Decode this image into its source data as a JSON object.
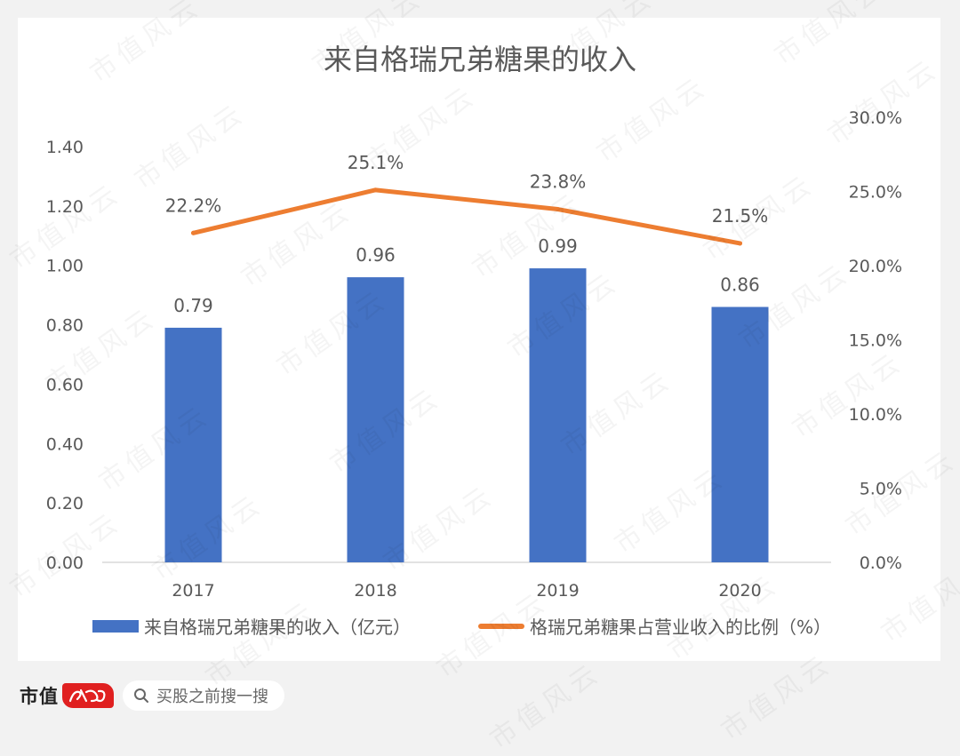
{
  "chart_data": {
    "type": "bar",
    "title": "来自格瑞兄弟糖果的收入",
    "categories": [
      "2017",
      "2018",
      "2019",
      "2020"
    ],
    "series": [
      {
        "name": "来自格瑞兄弟糖果的收入（亿元）",
        "type": "bar",
        "axis": "left",
        "values": [
          0.79,
          0.96,
          0.99,
          0.86
        ],
        "labels": [
          "0.79",
          "0.96",
          "0.99",
          "0.86"
        ],
        "color": "#4472c4"
      },
      {
        "name": "格瑞兄弟糖果占营业收入的比例（%）",
        "type": "line",
        "axis": "right",
        "values": [
          22.2,
          25.1,
          23.8,
          21.5
        ],
        "labels": [
          "22.2%",
          "25.1%",
          "23.8%",
          "21.5%"
        ],
        "color": "#ed7d31"
      }
    ],
    "y_left": {
      "min": 0,
      "max": 1.4,
      "ticks": [
        0,
        0.2,
        0.4,
        0.6,
        0.8,
        1.0,
        1.2,
        1.4
      ],
      "tick_labels": [
        "0.00",
        "0.20",
        "0.40",
        "0.60",
        "0.80",
        "1.00",
        "1.20",
        "1.40"
      ]
    },
    "y_right": {
      "min": 0,
      "max": 30,
      "ticks": [
        0,
        5,
        10,
        15,
        20,
        25,
        30
      ],
      "tick_labels": [
        "0.0%",
        "5.0%",
        "10.0%",
        "15.0%",
        "20.0%",
        "25.0%",
        "30.0%"
      ]
    },
    "grid": false,
    "legend_position": "bottom"
  },
  "footer": {
    "brand_name": "市值",
    "brand_seal_text": "风云",
    "search_hint": "买股之前搜一搜"
  },
  "watermark_text": "市值风云",
  "colors": {
    "bar": "#4472c4",
    "line": "#ed7d31",
    "axis_text": "#595959",
    "background": "#f2f2f2",
    "card": "#ffffff",
    "brand_red": "#e02020"
  }
}
